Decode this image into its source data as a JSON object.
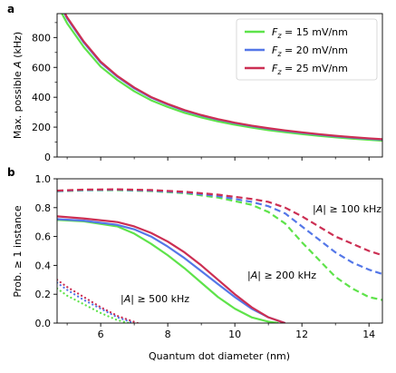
{
  "colors": {
    "green": "#5ee34a",
    "blue": "#5477e8",
    "red": "#cc2f53"
  },
  "chart_data": [
    {
      "panel": "a",
      "type": "line",
      "xlabel": "",
      "ylabel": "Max. possible A (kHz)",
      "ylabel_parts": {
        "before": "Max. possible ",
        "italic": "A",
        "after": " (kHz)"
      },
      "xlim": [
        4.7,
        14.4
      ],
      "ylim": [
        0,
        960
      ],
      "xticks": [
        6,
        8,
        10,
        12,
        14
      ],
      "yticks": [
        0,
        200,
        400,
        600,
        800
      ],
      "legend_position": "top-right",
      "series": [
        {
          "name": "F_z = 15 mV/nm",
          "symbol": "F",
          "subscript": "z",
          "rest": " = 15 mV/nm",
          "color": "#5ee34a",
          "x": [
            4.7,
            5.0,
            5.5,
            6.0,
            6.5,
            7.0,
            7.5,
            8.0,
            8.5,
            9.0,
            9.5,
            10.0,
            10.5,
            11.0,
            11.5,
            12.0,
            12.5,
            13.0,
            13.5,
            14.0,
            14.4
          ],
          "y": [
            1020,
            895,
            735,
            605,
            515,
            440,
            380,
            335,
            296,
            265,
            238,
            216,
            197,
            180,
            166,
            153,
            142,
            132,
            123,
            115,
            109
          ]
        },
        {
          "name": "F_z = 20 mV/nm",
          "symbol": "F",
          "subscript": "z",
          "rest": " = 20 mV/nm",
          "color": "#5477e8",
          "x": [
            4.7,
            5.0,
            5.5,
            6.0,
            6.5,
            7.0,
            7.5,
            8.0,
            8.5,
            9.0,
            9.5,
            10.0,
            10.5,
            11.0,
            11.5,
            12.0,
            12.5,
            13.0,
            13.5,
            14.0,
            14.4
          ],
          "y": [
            1055,
            928,
            765,
            632,
            537,
            460,
            398,
            351,
            310,
            278,
            250,
            227,
            207,
            190,
            175,
            162,
            150,
            139,
            130,
            122,
            116
          ]
        },
        {
          "name": "F_z = 25 mV/nm",
          "symbol": "F",
          "subscript": "z",
          "rest": " = 25 mV/nm",
          "color": "#cc2f53",
          "x": [
            4.7,
            5.0,
            5.5,
            6.0,
            6.5,
            7.0,
            7.5,
            8.0,
            8.5,
            9.0,
            9.5,
            10.0,
            10.5,
            11.0,
            11.5,
            12.0,
            12.5,
            13.0,
            13.5,
            14.0,
            14.4
          ],
          "y": [
            1062,
            935,
            772,
            638,
            542,
            465,
            402,
            355,
            314,
            281,
            253,
            230,
            210,
            193,
            178,
            165,
            153,
            142,
            133,
            125,
            119
          ]
        }
      ]
    },
    {
      "panel": "b",
      "type": "line",
      "xlabel": "Quantum dot diameter (nm)",
      "ylabel": "Prob. ≥ 1 instance",
      "xlim": [
        4.7,
        14.4
      ],
      "ylim": [
        0,
        1.0
      ],
      "xticks": [
        6,
        8,
        10,
        12,
        14
      ],
      "yticks": [
        0.0,
        0.2,
        0.4,
        0.6,
        0.8,
        1.0
      ],
      "annotations": [
        {
          "id": "ann-100",
          "text": "|A| ≥ 100 kHz",
          "italic": "A",
          "before": "|",
          "after": "| ≥ 100 kHz"
        },
        {
          "id": "ann-200",
          "text": "|A| ≥ 200 kHz",
          "italic": "A",
          "before": "|",
          "after": "| ≥ 200 kHz"
        },
        {
          "id": "ann-500",
          "text": "|A| ≥ 500 kHz",
          "italic": "A",
          "before": "|",
          "after": "| ≥ 500 kHz"
        }
      ],
      "series": [
        {
          "group": "|A| ≥ 100 kHz",
          "field": "15 mV/nm",
          "color": "#5ee34a",
          "style": "dashed",
          "x": [
            4.7,
            5.5,
            6.5,
            7.5,
            8.5,
            9.5,
            10.5,
            11.0,
            11.5,
            12.0,
            12.5,
            13.0,
            13.5,
            14.0,
            14.4
          ],
          "y": [
            0.913,
            0.92,
            0.921,
            0.915,
            0.9,
            0.87,
            0.82,
            0.77,
            0.69,
            0.56,
            0.44,
            0.32,
            0.24,
            0.18,
            0.16
          ]
        },
        {
          "group": "|A| ≥ 100 kHz",
          "field": "20 mV/nm",
          "color": "#5477e8",
          "style": "dashed",
          "x": [
            4.7,
            5.5,
            6.5,
            7.5,
            8.5,
            9.5,
            10.5,
            11.0,
            11.5,
            12.0,
            12.5,
            13.0,
            13.5,
            14.0,
            14.4
          ],
          "y": [
            0.915,
            0.922,
            0.924,
            0.918,
            0.905,
            0.88,
            0.84,
            0.81,
            0.76,
            0.67,
            0.58,
            0.49,
            0.42,
            0.37,
            0.34
          ]
        },
        {
          "group": "|A| ≥ 100 kHz",
          "field": "25 mV/nm",
          "color": "#cc2f53",
          "style": "dashed",
          "x": [
            4.7,
            5.5,
            6.5,
            7.5,
            8.5,
            9.5,
            10.5,
            11.0,
            11.5,
            12.0,
            12.5,
            13.0,
            13.5,
            14.0,
            14.4
          ],
          "y": [
            0.918,
            0.925,
            0.927,
            0.922,
            0.91,
            0.89,
            0.86,
            0.84,
            0.8,
            0.74,
            0.67,
            0.6,
            0.55,
            0.5,
            0.47
          ]
        },
        {
          "group": "|A| ≥ 200 kHz",
          "field": "15 mV/nm",
          "color": "#5ee34a",
          "style": "solid",
          "x": [
            4.7,
            5.5,
            6.5,
            7.0,
            7.5,
            8.0,
            8.5,
            9.0,
            9.5,
            10.0,
            10.5,
            11.0,
            11.3
          ],
          "y": [
            0.715,
            0.705,
            0.67,
            0.62,
            0.55,
            0.47,
            0.38,
            0.28,
            0.18,
            0.1,
            0.04,
            0.01,
            0.0
          ]
        },
        {
          "group": "|A| ≥ 200 kHz",
          "field": "20 mV/nm",
          "color": "#5477e8",
          "style": "solid",
          "x": [
            4.7,
            5.5,
            6.5,
            7.0,
            7.5,
            8.0,
            8.5,
            9.0,
            9.5,
            10.0,
            10.5,
            11.0,
            11.5
          ],
          "y": [
            0.72,
            0.71,
            0.68,
            0.65,
            0.6,
            0.53,
            0.45,
            0.36,
            0.27,
            0.18,
            0.1,
            0.04,
            0.0
          ]
        },
        {
          "group": "|A| ≥ 200 kHz",
          "field": "25 mV/nm",
          "color": "#cc2f53",
          "style": "solid",
          "x": [
            4.7,
            5.5,
            6.5,
            7.0,
            7.5,
            8.0,
            8.5,
            9.0,
            9.5,
            10.0,
            10.5,
            11.0,
            11.5
          ],
          "y": [
            0.74,
            0.725,
            0.7,
            0.67,
            0.625,
            0.565,
            0.49,
            0.4,
            0.3,
            0.2,
            0.11,
            0.04,
            0.0
          ]
        },
        {
          "group": "|A| ≥ 500 kHz",
          "field": "15 mV/nm",
          "color": "#5ee34a",
          "style": "dotted",
          "x": [
            4.7,
            5.0,
            5.5,
            6.0,
            6.5,
            6.85
          ],
          "y": [
            0.24,
            0.19,
            0.13,
            0.07,
            0.02,
            0.0
          ]
        },
        {
          "group": "|A| ≥ 500 kHz",
          "field": "20 mV/nm",
          "color": "#5477e8",
          "style": "dotted",
          "x": [
            4.7,
            5.0,
            5.5,
            6.0,
            6.5,
            7.0
          ],
          "y": [
            0.28,
            0.23,
            0.16,
            0.1,
            0.04,
            0.0
          ]
        },
        {
          "group": "|A| ≥ 500 kHz",
          "field": "25 mV/nm",
          "color": "#cc2f53",
          "style": "dotted",
          "x": [
            4.7,
            5.0,
            5.5,
            6.0,
            6.5,
            7.1
          ],
          "y": [
            0.3,
            0.25,
            0.18,
            0.11,
            0.05,
            0.0
          ]
        }
      ]
    }
  ]
}
